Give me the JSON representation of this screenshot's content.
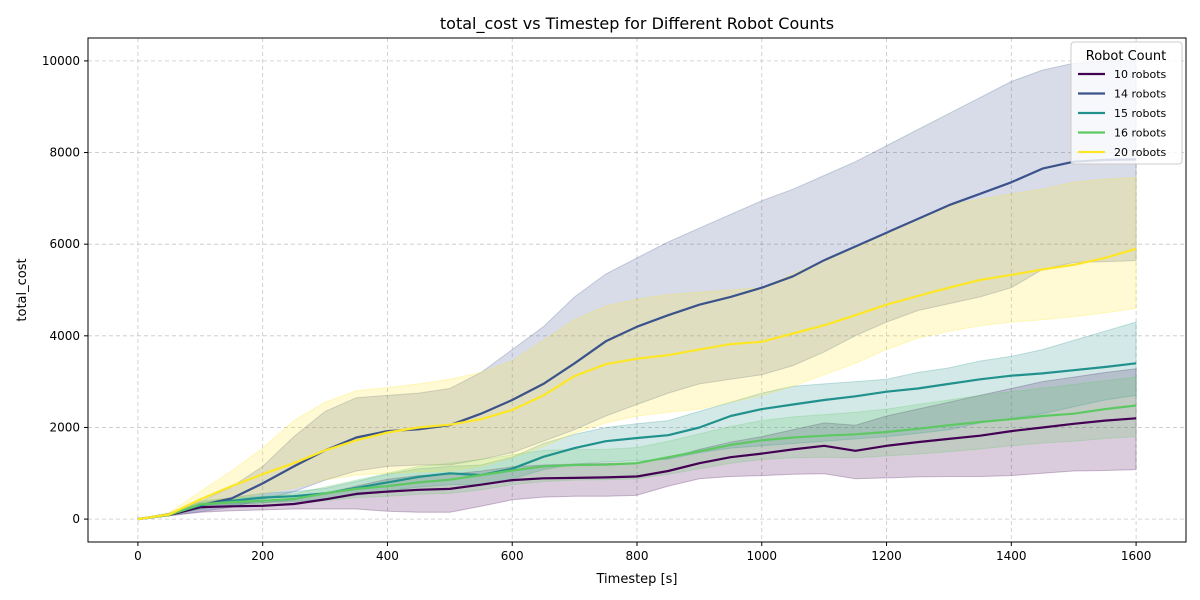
{
  "chart_data": {
    "type": "line",
    "title": "total_cost vs Timestep for Different Robot Counts",
    "xlabel": "Timestep [s]",
    "ylabel": "total_cost",
    "xlim": [
      -80,
      1680
    ],
    "ylim": [
      -500,
      10500
    ],
    "xticks": [
      0,
      200,
      400,
      600,
      800,
      1000,
      1200,
      1400,
      1600
    ],
    "yticks": [
      0,
      2000,
      4000,
      6000,
      8000,
      10000
    ],
    "grid": true,
    "legend": {
      "title": "Robot Count",
      "placement": "top-right"
    },
    "x": [
      0,
      50,
      100,
      150,
      200,
      250,
      300,
      350,
      400,
      450,
      500,
      550,
      600,
      650,
      700,
      750,
      800,
      850,
      900,
      950,
      1000,
      1050,
      1100,
      1150,
      1200,
      1250,
      1300,
      1350,
      1400,
      1450,
      1500,
      1550,
      1600
    ],
    "series": [
      {
        "name": "10 robots",
        "color": "#440154",
        "values": [
          0,
          90,
          260,
          280,
          290,
          330,
          430,
          550,
          600,
          640,
          660,
          750,
          850,
          890,
          900,
          910,
          930,
          1050,
          1220,
          1350,
          1430,
          1520,
          1600,
          1490,
          1600,
          1680,
          1750,
          1820,
          1920,
          2000,
          2080,
          2150,
          2200
        ],
        "lower": [
          0,
          70,
          150,
          180,
          200,
          220,
          220,
          220,
          170,
          150,
          150,
          280,
          420,
          480,
          500,
          500,
          520,
          720,
          880,
          930,
          950,
          980,
          990,
          880,
          900,
          920,
          930,
          930,
          950,
          1000,
          1050,
          1060,
          1080
        ],
        "upper": [
          0,
          110,
          320,
          350,
          360,
          420,
          560,
          720,
          870,
          950,
          980,
          1050,
          1140,
          1180,
          1200,
          1220,
          1230,
          1330,
          1520,
          1680,
          1800,
          1950,
          2100,
          2050,
          2250,
          2400,
          2550,
          2700,
          2850,
          3000,
          3100,
          3200,
          3280
        ]
      },
      {
        "name": "14 robots",
        "color": "#3b528b",
        "values": [
          0,
          100,
          300,
          450,
          780,
          1150,
          1500,
          1780,
          1920,
          1960,
          2050,
          2300,
          2600,
          2950,
          3400,
          3880,
          4200,
          4450,
          4680,
          4850,
          5050,
          5300,
          5650,
          5950,
          6250,
          6550,
          6850,
          7100,
          7350,
          7650,
          7800,
          7840,
          7850
        ],
        "lower": [
          0,
          80,
          160,
          260,
          430,
          600,
          850,
          1050,
          1150,
          1180,
          1180,
          1300,
          1450,
          1700,
          1950,
          2250,
          2500,
          2750,
          2950,
          3050,
          3150,
          3350,
          3650,
          4000,
          4300,
          4550,
          4700,
          4850,
          5050,
          5450,
          5600,
          5620,
          5640
        ],
        "upper": [
          0,
          130,
          380,
          700,
          1150,
          1800,
          2350,
          2650,
          2700,
          2750,
          2850,
          3200,
          3700,
          4200,
          4850,
          5350,
          5700,
          6050,
          6350,
          6650,
          6950,
          7200,
          7500,
          7800,
          8150,
          8500,
          8850,
          9200,
          9550,
          9800,
          9950,
          10000,
          10000
        ]
      },
      {
        "name": "15 robots",
        "color": "#21918c",
        "values": [
          0,
          100,
          300,
          400,
          470,
          500,
          560,
          680,
          800,
          920,
          1000,
          960,
          1100,
          1360,
          1550,
          1700,
          1770,
          1830,
          2000,
          2250,
          2400,
          2500,
          2600,
          2680,
          2780,
          2850,
          2950,
          3050,
          3130,
          3180,
          3250,
          3320,
          3400
        ],
        "lower": [
          0,
          80,
          220,
          300,
          360,
          390,
          430,
          520,
          620,
          700,
          750,
          760,
          880,
          1080,
          1200,
          1250,
          1270,
          1310,
          1450,
          1550,
          1600,
          1650,
          1700,
          1750,
          1800,
          1870,
          1950,
          2100,
          2200,
          2300,
          2450,
          2600,
          2700
        ],
        "upper": [
          0,
          120,
          360,
          470,
          560,
          600,
          670,
          820,
          980,
          1100,
          1150,
          1180,
          1350,
          1650,
          1850,
          2000,
          2080,
          2150,
          2350,
          2550,
          2750,
          2900,
          2950,
          3000,
          3050,
          3200,
          3300,
          3450,
          3550,
          3700,
          3900,
          4100,
          4300
        ]
      },
      {
        "name": "16 robots",
        "color": "#5ec962",
        "values": [
          0,
          90,
          320,
          370,
          400,
          440,
          560,
          660,
          720,
          800,
          860,
          960,
          1060,
          1150,
          1180,
          1190,
          1220,
          1350,
          1480,
          1620,
          1720,
          1780,
          1820,
          1850,
          1900,
          1970,
          2050,
          2120,
          2180,
          2250,
          2300,
          2400,
          2480
        ],
        "lower": [
          0,
          70,
          240,
          280,
          300,
          330,
          400,
          470,
          500,
          540,
          560,
          640,
          750,
          820,
          850,
          860,
          880,
          980,
          1100,
          1220,
          1300,
          1340,
          1350,
          1340,
          1380,
          1420,
          1470,
          1530,
          1600,
          1660,
          1700,
          1760,
          1800
        ],
        "upper": [
          0,
          110,
          400,
          460,
          500,
          550,
          700,
          850,
          1000,
          1150,
          1220,
          1300,
          1400,
          1500,
          1520,
          1520,
          1560,
          1700,
          1860,
          2020,
          2150,
          2230,
          2280,
          2330,
          2400,
          2500,
          2600,
          2700,
          2780,
          2860,
          2940,
          3020,
          3100
        ]
      },
      {
        "name": "20 robots",
        "color": "#fde725",
        "values": [
          0,
          100,
          430,
          720,
          980,
          1220,
          1500,
          1720,
          1890,
          2000,
          2060,
          2180,
          2380,
          2700,
          3120,
          3380,
          3500,
          3580,
          3700,
          3820,
          3870,
          4050,
          4230,
          4450,
          4680,
          4870,
          5050,
          5220,
          5330,
          5450,
          5550,
          5700,
          5900
        ],
        "lower": [
          0,
          70,
          260,
          430,
          560,
          680,
          860,
          960,
          1000,
          1030,
          1050,
          1150,
          1350,
          1580,
          1880,
          2100,
          2250,
          2330,
          2400,
          2550,
          2700,
          2900,
          3150,
          3400,
          3700,
          3950,
          4100,
          4220,
          4300,
          4350,
          4420,
          4500,
          4600
        ],
        "upper": [
          0,
          140,
          600,
          1050,
          1550,
          2150,
          2550,
          2800,
          2870,
          2950,
          3050,
          3200,
          3450,
          3900,
          4350,
          4650,
          4800,
          4900,
          4950,
          5000,
          5050,
          5350,
          5650,
          5950,
          6250,
          6550,
          6850,
          6980,
          7100,
          7200,
          7350,
          7420,
          7450
        ]
      }
    ]
  }
}
